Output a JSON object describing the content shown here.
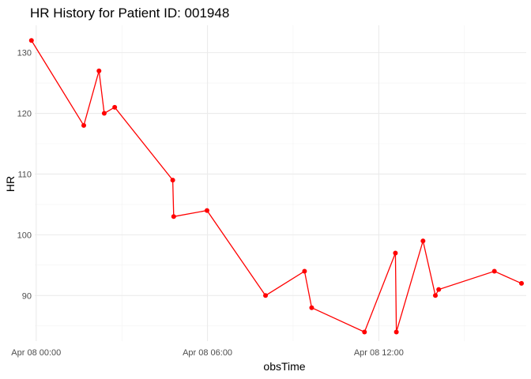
{
  "chart_data": {
    "type": "line",
    "title": "HR History for Patient ID: 001948",
    "xlabel": "obsTime",
    "ylabel": "HR",
    "x_type": "time",
    "x_range": [
      "2021-04-07T23:57",
      "2021-04-08T17:10"
    ],
    "x_ticks": [
      {
        "value": "2021-04-08T00:00",
        "label": "Apr 08 00:00"
      },
      {
        "value": "2021-04-08T06:00",
        "label": "Apr 08 06:00"
      },
      {
        "value": "2021-04-08T12:00",
        "label": "Apr 08 12:00"
      }
    ],
    "ylim": [
      82.5,
      134.5
    ],
    "y_ticks": [
      90,
      100,
      110,
      120,
      130
    ],
    "grid": true,
    "series": [
      {
        "color": "#ff0000",
        "points": [
          {
            "x": "2021-04-07T23:50",
            "y": 132
          },
          {
            "x": "2021-04-08T01:40",
            "y": 118
          },
          {
            "x": "2021-04-08T02:12",
            "y": 127
          },
          {
            "x": "2021-04-08T02:23",
            "y": 120
          },
          {
            "x": "2021-04-08T02:45",
            "y": 121
          },
          {
            "x": "2021-04-08T04:47",
            "y": 109
          },
          {
            "x": "2021-04-08T04:49",
            "y": 103
          },
          {
            "x": "2021-04-08T05:59",
            "y": 104
          },
          {
            "x": "2021-04-08T08:02",
            "y": 90
          },
          {
            "x": "2021-04-08T09:24",
            "y": 94
          },
          {
            "x": "2021-04-08T09:39",
            "y": 88
          },
          {
            "x": "2021-04-08T11:30",
            "y": 84
          },
          {
            "x": "2021-04-08T12:35",
            "y": 97
          },
          {
            "x": "2021-04-08T12:37",
            "y": 84
          },
          {
            "x": "2021-04-08T13:33",
            "y": 99
          },
          {
            "x": "2021-04-08T13:59",
            "y": 90
          },
          {
            "x": "2021-04-08T14:06",
            "y": 91
          },
          {
            "x": "2021-04-08T16:03",
            "y": 94
          },
          {
            "x": "2021-04-08T17:00",
            "y": 92
          }
        ]
      }
    ]
  }
}
